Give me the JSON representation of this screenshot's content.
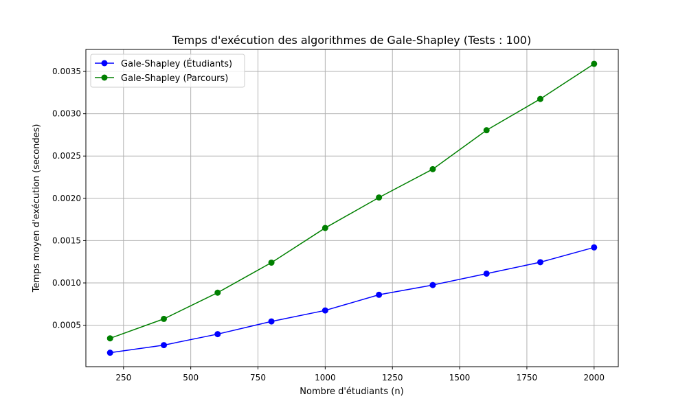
{
  "chart_data": {
    "type": "line",
    "title": "Temps d'exécution des algorithmes de Gale-Shapley (Tests : 100)",
    "xlabel": "Nombre d'étudiants (n)",
    "ylabel": "Temps moyen d'exécution (secondes)",
    "x": [
      200,
      400,
      600,
      800,
      1000,
      1200,
      1400,
      1600,
      1800,
      2000
    ],
    "xlim": [
      110,
      2090
    ],
    "ylim": [
      1e-05,
      0.00376
    ],
    "xticks": [
      250,
      500,
      750,
      1000,
      1250,
      1500,
      1750,
      2000
    ],
    "xtick_labels": [
      "250",
      "500",
      "750",
      "1000",
      "1250",
      "1500",
      "1750",
      "2000"
    ],
    "yticks": [
      0.0005,
      0.001,
      0.0015,
      0.002,
      0.0025,
      0.003,
      0.0035
    ],
    "ytick_labels": [
      "0.0005",
      "0.0010",
      "0.0015",
      "0.0020",
      "0.0025",
      "0.0030",
      "0.0035"
    ],
    "grid": true,
    "legend_position": "top-left",
    "series": [
      {
        "name": "Gale-Shapley (Étudiants)",
        "color": "#0000ff",
        "values": [
          0.000175,
          0.000265,
          0.000395,
          0.000545,
          0.000675,
          0.00086,
          0.000975,
          0.00111,
          0.001245,
          0.00142
        ]
      },
      {
        "name": "Gale-Shapley (Parcours)",
        "color": "#008000",
        "values": [
          0.000345,
          0.000575,
          0.000885,
          0.00124,
          0.00165,
          0.00201,
          0.002345,
          0.002805,
          0.003175,
          0.00359
        ]
      }
    ]
  }
}
